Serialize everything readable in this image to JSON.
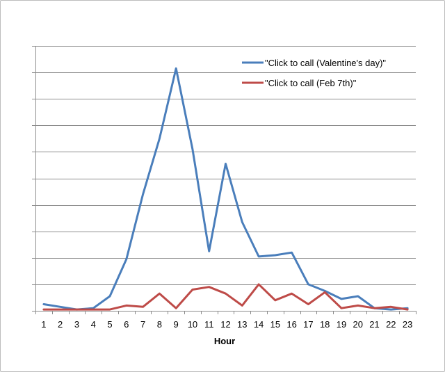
{
  "chart_data": {
    "type": "line",
    "title": "",
    "xlabel": "Hour",
    "ylabel": "",
    "x": [
      1,
      2,
      3,
      4,
      5,
      6,
      7,
      8,
      9,
      10,
      11,
      12,
      13,
      14,
      15,
      16,
      17,
      18,
      19,
      20,
      21,
      22,
      23
    ],
    "y_tick_count": 10,
    "ylim": [
      0,
      10
    ],
    "grid": true,
    "legend_position": "top-right",
    "series": [
      {
        "name": "\"Click to call (Valentine's day)\"",
        "color": "#4a7ebb",
        "values": [
          0.25,
          0.15,
          0.05,
          0.1,
          0.55,
          1.95,
          4.4,
          6.5,
          9.15,
          6.1,
          2.25,
          5.55,
          3.35,
          2.05,
          2.1,
          2.2,
          1.0,
          0.75,
          0.45,
          0.55,
          0.1,
          0.05,
          0.1
        ]
      },
      {
        "name": "\"Click to call (Feb 7th)\"",
        "color": "#be4b48",
        "values": [
          0.05,
          0.05,
          0.05,
          0.05,
          0.05,
          0.2,
          0.15,
          0.65,
          0.1,
          0.8,
          0.9,
          0.65,
          0.2,
          1.0,
          0.4,
          0.65,
          0.25,
          0.7,
          0.1,
          0.2,
          0.1,
          0.15,
          0.05
        ]
      }
    ]
  }
}
